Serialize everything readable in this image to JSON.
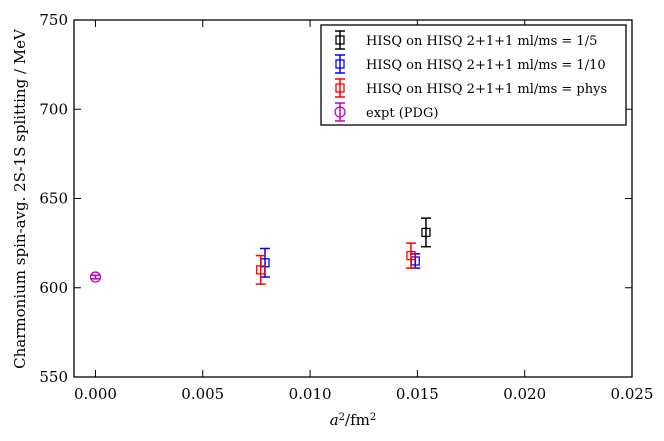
{
  "chart_data": {
    "type": "scatter",
    "title": "",
    "xlabel": "a²/fm²",
    "ylabel": "Charmonium spin-avg. 2S-1S splitting / MeV",
    "xlim": [
      -0.001,
      0.025
    ],
    "ylim": [
      550,
      750
    ],
    "xticks": [
      0.0,
      0.005,
      0.01,
      0.015,
      0.02,
      0.025
    ],
    "xtick_labels": [
      "0.000",
      "0.005",
      "0.010",
      "0.015",
      "0.020",
      "0.025"
    ],
    "yticks": [
      550,
      600,
      650,
      700,
      750
    ],
    "ytick_labels": [
      "550",
      "600",
      "650",
      "700",
      "750"
    ],
    "grid": false,
    "legend_position": "top-right",
    "series": [
      {
        "name": "HISQ on HISQ 2+1+1 m_l/m_s = 1/5",
        "legend_label": "HISQ on HISQ 2+1+1 ml/ms = 1/5",
        "color": "#000000",
        "marker": "square",
        "points": [
          {
            "x": 0.0154,
            "y": 631,
            "yerr": 8
          }
        ]
      },
      {
        "name": "HISQ on HISQ 2+1+1 m_l/m_s = 1/10",
        "legend_label": "HISQ on HISQ 2+1+1 ml/ms = 1/10",
        "color": "#0000ff",
        "marker": "square",
        "points": [
          {
            "x": 0.0079,
            "y": 614,
            "yerr": 8
          },
          {
            "x": 0.0149,
            "y": 615,
            "yerr": 4
          }
        ]
      },
      {
        "name": "HISQ on HISQ 2+1+1 m_l/m_s = phys",
        "legend_label": "HISQ on HISQ 2+1+1 ml/ms = phys",
        "color": "#ff0000",
        "marker": "square",
        "points": [
          {
            "x": 0.0077,
            "y": 610,
            "yerr": 8
          },
          {
            "x": 0.0147,
            "y": 618,
            "yerr": 7
          }
        ]
      },
      {
        "name": "expt (PDG)",
        "legend_label": "expt (PDG)",
        "color": "#bf00bf",
        "marker": "circle",
        "points": [
          {
            "x": 0.0,
            "y": 606,
            "yerr": 1
          }
        ]
      }
    ]
  }
}
